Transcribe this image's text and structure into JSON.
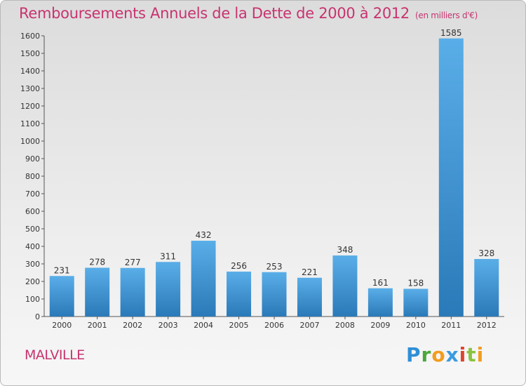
{
  "header": {
    "title": "Remboursements Annuels de la Dette de 2000 à 2012",
    "unit": "(en milliers d'€)"
  },
  "footer": {
    "town": "MALVILLE",
    "logo_text": "Proxiti"
  },
  "colors": {
    "title": "#c8336f",
    "bar_top": "#5aaee8",
    "bar_bottom": "#2a79b8"
  },
  "chart_data": {
    "type": "bar",
    "title": "Remboursements Annuels de la Dette de 2000 à 2012",
    "subtitle": "(en milliers d'€)",
    "categories": [
      "2000",
      "2001",
      "2002",
      "2003",
      "2004",
      "2005",
      "2006",
      "2007",
      "2008",
      "2009",
      "2010",
      "2011",
      "2012"
    ],
    "values": [
      231,
      278,
      277,
      311,
      432,
      256,
      253,
      221,
      348,
      161,
      158,
      1585,
      328
    ],
    "yticks": [
      0,
      100,
      200,
      300,
      400,
      500,
      600,
      700,
      800,
      900,
      1000,
      1100,
      1200,
      1300,
      1400,
      1500,
      1600
    ],
    "ylim": [
      0,
      1600
    ],
    "grid": false,
    "legend": "none"
  }
}
